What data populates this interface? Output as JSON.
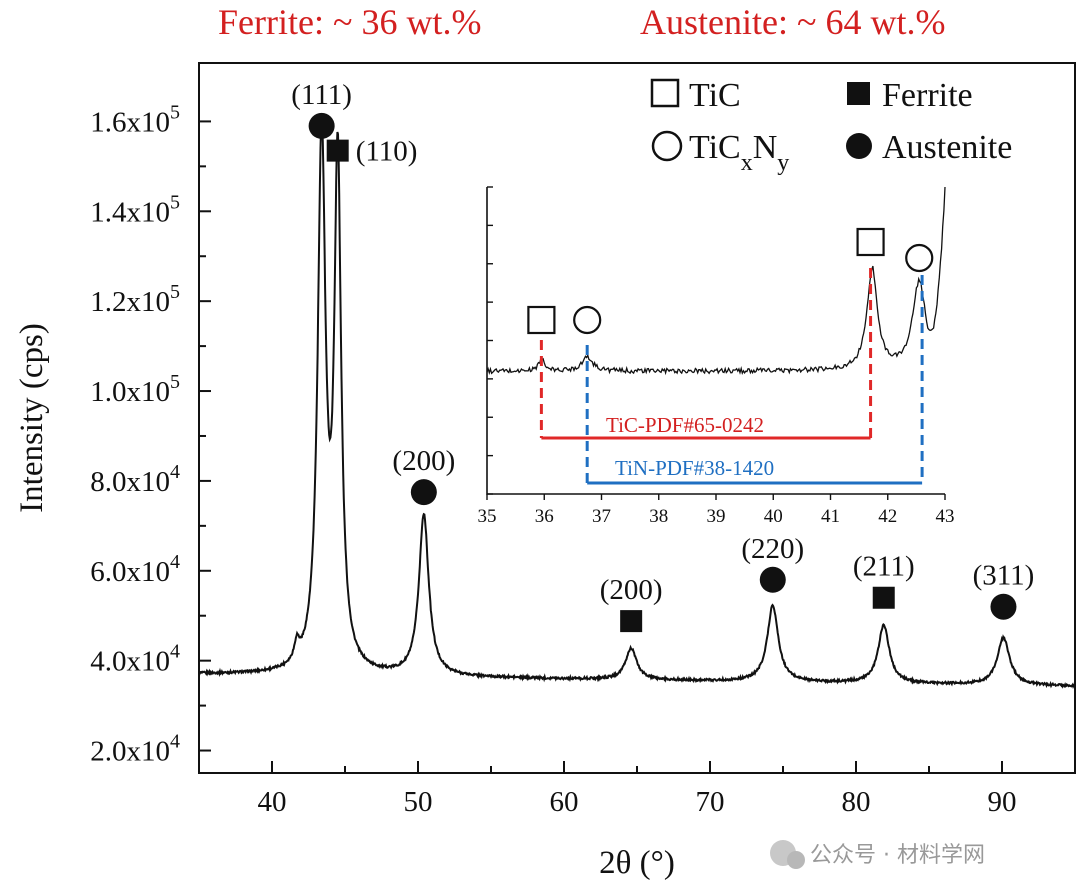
{
  "phase_fractions": {
    "ferrite": "Ferrite: ~ 36 wt.%",
    "austenite": "Austenite: ~ 64 wt.%",
    "color": "#d32020"
  },
  "watermark": "公众号 · 材料学网",
  "chart_data": [
    {
      "type": "line",
      "x_ticks": [
        "40",
        "50",
        "60",
        "70",
        "80",
        "90"
      ],
      "y_ticks": [
        {
          "mantissa": "2.0x10",
          "exp": "4"
        },
        {
          "mantissa": "4.0x10",
          "exp": "4"
        },
        {
          "mantissa": "6.0x10",
          "exp": "4"
        },
        {
          "mantissa": "8.0x10",
          "exp": "4"
        },
        {
          "mantissa": "1.0x10",
          "exp": "5"
        },
        {
          "mantissa": "1.2x10",
          "exp": "5"
        },
        {
          "mantissa": "1.4x10",
          "exp": "5"
        },
        {
          "mantissa": "1.6x10",
          "exp": "5"
        }
      ],
      "xlabel": "2θ (°)",
      "ylabel": "Intensity (cps)",
      "xlim": [
        35,
        95
      ],
      "ylim": [
        15000,
        173000
      ],
      "baseline": 37000,
      "peaks": [
        {
          "x": 41.7,
          "height": 41000,
          "width": 0.2
        },
        {
          "x": 43.4,
          "height": 155000,
          "width": 0.32
        },
        {
          "x": 44.5,
          "height": 149000,
          "width": 0.28
        },
        {
          "x": 50.4,
          "height": 73000,
          "width": 0.4
        },
        {
          "x": 64.6,
          "height": 44000,
          "width": 0.45
        },
        {
          "x": 74.3,
          "height": 54000,
          "width": 0.45
        },
        {
          "x": 81.9,
          "height": 50000,
          "width": 0.45
        },
        {
          "x": 90.1,
          "height": 47500,
          "width": 0.5
        }
      ],
      "annotations": [
        {
          "label": "(111)",
          "phase": "austenite",
          "x": 43.4,
          "y": 159000
        },
        {
          "label": "(110)",
          "phase": "ferrite",
          "x": 44.5,
          "y": 153500
        },
        {
          "label": "(200)",
          "phase": "austenite",
          "x": 50.4,
          "y": 77500
        },
        {
          "label": "(200)",
          "phase": "ferrite",
          "x": 64.6,
          "y": 48800
        },
        {
          "label": "(220)",
          "phase": "austenite",
          "x": 74.3,
          "y": 58000
        },
        {
          "label": "(211)",
          "phase": "ferrite",
          "x": 81.9,
          "y": 54000
        },
        {
          "label": "(311)",
          "phase": "austenite",
          "x": 90.1,
          "y": 52000
        }
      ],
      "legend": {
        "placement": "top-right",
        "entries": [
          {
            "label": "TiC",
            "marker": "open-square"
          },
          {
            "label_main": "TiC",
            "sub1": "x",
            "mid": "N",
            "sub2": "y",
            "marker": "open-circle"
          },
          {
            "label": "Ferrite",
            "marker": "filled-square"
          },
          {
            "label": "Austenite",
            "marker": "filled-circle"
          }
        ]
      }
    },
    {
      "type": "line",
      "role": "inset",
      "x_ticks": [
        "35",
        "36",
        "37",
        "38",
        "39",
        "40",
        "41",
        "42",
        "43"
      ],
      "xlim": [
        35,
        43
      ],
      "ylim": [
        0,
        100
      ],
      "baseline": 40,
      "peaks": [
        {
          "x": 35.95,
          "height": 4,
          "width": 0.06
        },
        {
          "x": 36.75,
          "height": 4.5,
          "width": 0.12
        },
        {
          "x": 41.73,
          "height": 33,
          "width": 0.11
        },
        {
          "x": 42.55,
          "height": 29,
          "width": 0.14
        }
      ],
      "markers": [
        {
          "x": 35.95,
          "shape": "open-square"
        },
        {
          "x": 36.75,
          "shape": "open-circle"
        },
        {
          "x": 41.7,
          "shape": "open-square"
        },
        {
          "x": 42.55,
          "shape": "open-circle"
        }
      ],
      "references": [
        {
          "name": "TiC-PDF#65-0242",
          "x_start": 35.95,
          "x_end": 41.7,
          "color": "#e02828"
        },
        {
          "name": "TiN-PDF#38-1420",
          "x_start": 36.75,
          "x_end": 42.6,
          "color": "#1f6fc2"
        }
      ]
    }
  ]
}
